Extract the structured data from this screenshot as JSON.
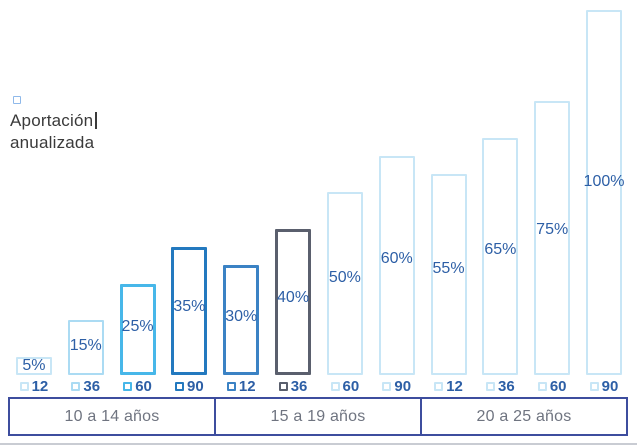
{
  "legend": {
    "line1": "Aportación",
    "line2": "anualizada"
  },
  "colors": {
    "value_label": "#2D5FA6",
    "tick_text": "#2D5FA6",
    "group_border": "#3D4D9E",
    "group_text": "#6F7480",
    "legend_text": "#3A3A3A",
    "legend_box": "#8FB9EA",
    "divider": "#C9CCD3"
  },
  "chart_data": {
    "type": "bar",
    "title": "",
    "legend_label": "Aportación anualizada",
    "unit": "%",
    "ylim": [
      0,
      100
    ],
    "grid": false,
    "x_groups": [
      "10 a 14 años",
      "15 a 19 años",
      "20 a 25 años"
    ],
    "categories": [
      "12",
      "36",
      "60",
      "90",
      "12",
      "36",
      "60",
      "90",
      "12",
      "36",
      "60",
      "90"
    ],
    "values": [
      5,
      15,
      25,
      35,
      30,
      40,
      50,
      60,
      55,
      65,
      75,
      100
    ],
    "bars": [
      {
        "group": "10 a 14 años",
        "tick_label": "12",
        "value": 5,
        "label": "5%",
        "color": "#C8E6F6",
        "stroke": 2
      },
      {
        "group": "10 a 14 años",
        "tick_label": "36",
        "value": 15,
        "label": "15%",
        "color": "#ABDBF3",
        "stroke": 2
      },
      {
        "group": "10 a 14 años",
        "tick_label": "60",
        "value": 25,
        "label": "25%",
        "color": "#47B7E9",
        "stroke": 3
      },
      {
        "group": "10 a 14 años",
        "tick_label": "90",
        "value": 35,
        "label": "35%",
        "color": "#2379BF",
        "stroke": 3
      },
      {
        "group": "15 a 19 años",
        "tick_label": "12",
        "value": 30,
        "label": "30%",
        "color": "#3B82C4",
        "stroke": 3
      },
      {
        "group": "15 a 19 años",
        "tick_label": "36",
        "value": 40,
        "label": "40%",
        "color": "#5A5F6D",
        "stroke": 3
      },
      {
        "group": "15 a 19 años",
        "tick_label": "60",
        "value": 50,
        "label": "50%",
        "color": "#C8E6F6",
        "stroke": 2
      },
      {
        "group": "15 a 19 años",
        "tick_label": "90",
        "value": 60,
        "label": "60%",
        "color": "#C8E6F6",
        "stroke": 2
      },
      {
        "group": "20 a 25 años",
        "tick_label": "12",
        "value": 55,
        "label": "55%",
        "color": "#C8E6F6",
        "stroke": 2
      },
      {
        "group": "20 a 25 años",
        "tick_label": "36",
        "value": 65,
        "label": "65%",
        "color": "#C8E6F6",
        "stroke": 2
      },
      {
        "group": "20 a 25 años",
        "tick_label": "60",
        "value": 75,
        "label": "75%",
        "color": "#C8E6F6",
        "stroke": 2
      },
      {
        "group": "20 a 25 años",
        "tick_label": "90",
        "value": 100,
        "label": "100%",
        "color": "#C8E6F6",
        "stroke": 2
      }
    ]
  }
}
